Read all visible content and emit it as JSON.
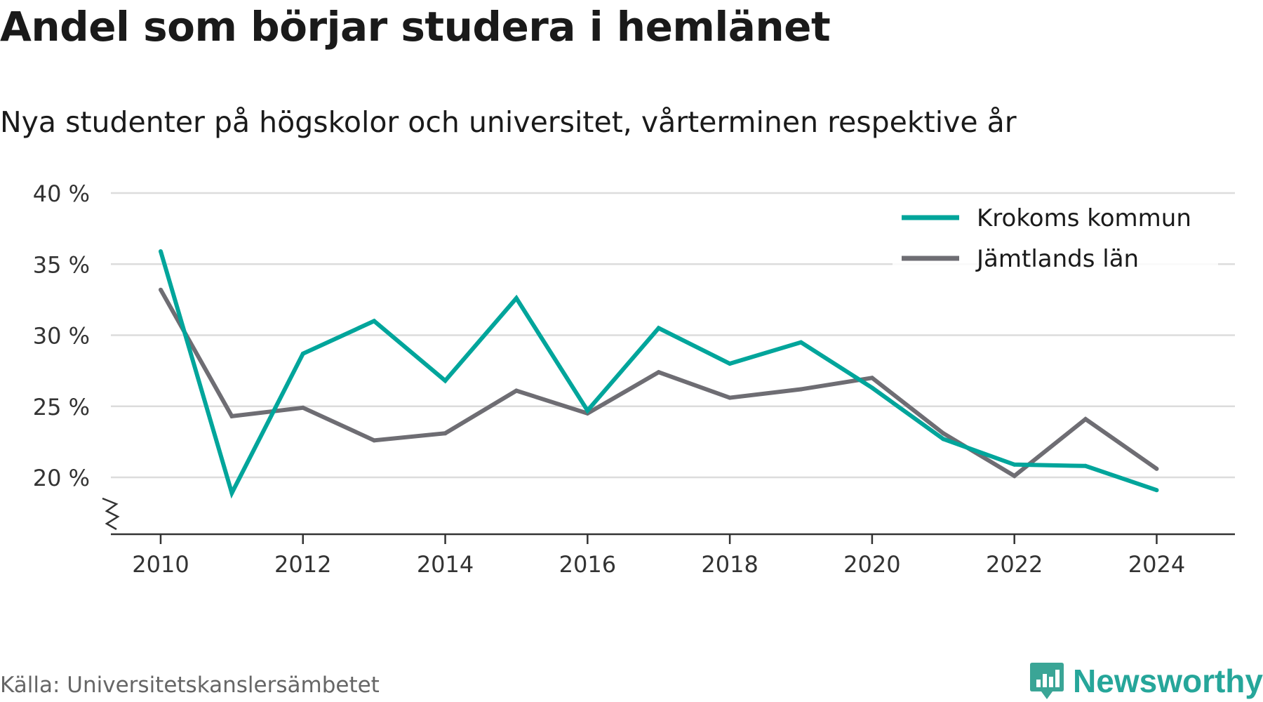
{
  "title": "Andel som börjar studera i hemlänet",
  "subtitle": "Nya studenter på högskolor och universitet, vårterminen respektive år",
  "source": "Källa: Universitetskanslersämbetet",
  "brand": {
    "name": "Newsworthy",
    "icon": "newsworthy-logo-icon"
  },
  "colors": {
    "krokom": "#00a59b",
    "jamtland": "#6e6d73",
    "grid": "#dcdcdc",
    "axis": "#333333"
  },
  "chart_data": {
    "type": "line",
    "title": "Andel som börjar studera i hemlänet",
    "subtitle": "Nya studenter på högskolor och universitet, vårterminen respektive år",
    "x": [
      2010,
      2011,
      2012,
      2013,
      2014,
      2015,
      2016,
      2017,
      2018,
      2019,
      2020,
      2021,
      2022,
      2023,
      2024
    ],
    "series": [
      {
        "name": "Krokoms kommun",
        "color": "#00a59b",
        "values": [
          35.9,
          18.9,
          28.7,
          31.0,
          26.8,
          32.6,
          24.7,
          30.5,
          28.0,
          29.5,
          26.3,
          22.7,
          20.9,
          20.8,
          19.1
        ]
      },
      {
        "name": "Jämtlands län",
        "color": "#6e6d73",
        "values": [
          33.2,
          24.3,
          24.9,
          22.6,
          23.1,
          26.1,
          24.5,
          27.4,
          25.6,
          26.2,
          27.0,
          23.1,
          20.1,
          24.1,
          20.6
        ]
      }
    ],
    "x_ticks": [
      "2010",
      "2012",
      "2014",
      "2016",
      "2018",
      "2020",
      "2022",
      "2024"
    ],
    "y_ticks": [
      "20 %",
      "25 %",
      "30 %",
      "35 %",
      "40 %"
    ],
    "y_tick_values": [
      20,
      25,
      30,
      35,
      40
    ],
    "xlim": [
      2009.3,
      2025.1
    ],
    "ylim": [
      16,
      40
    ],
    "y_axis_break": true,
    "grid": true,
    "legend_position": "top-right"
  }
}
